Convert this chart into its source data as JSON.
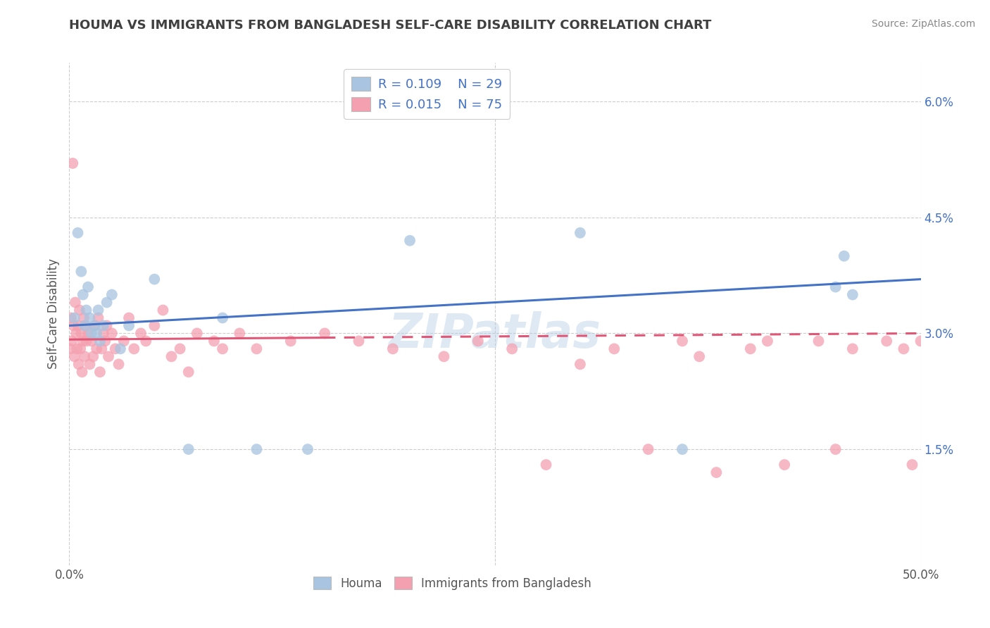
{
  "title": "HOUMA VS IMMIGRANTS FROM BANGLADESH SELF-CARE DISABILITY CORRELATION CHART",
  "source": "Source: ZipAtlas.com",
  "ylabel": "Self-Care Disability",
  "right_yticks": [
    0.0,
    1.5,
    3.0,
    4.5,
    6.0
  ],
  "right_yticklabels": [
    "",
    "1.5%",
    "3.0%",
    "4.5%",
    "6.0%"
  ],
  "xlim": [
    0.0,
    50.0
  ],
  "ylim": [
    0.0,
    6.5
  ],
  "houma_R": 0.109,
  "houma_N": 29,
  "bangladesh_R": 0.015,
  "bangladesh_N": 75,
  "houma_color": "#a8c4e0",
  "houma_line_color": "#4472c4",
  "bangladesh_color": "#f4a0b0",
  "bangladesh_line_color": "#e05878",
  "watermark": "ZIPatlas",
  "background_color": "#ffffff",
  "grid_color": "#cccccc",
  "title_color": "#404040",
  "houma_x": [
    0.3,
    0.5,
    0.7,
    0.8,
    0.9,
    1.0,
    1.1,
    1.2,
    1.3,
    1.5,
    1.6,
    1.7,
    1.8,
    2.0,
    2.2,
    2.5,
    3.0,
    3.5,
    5.0,
    7.0,
    9.0,
    11.0,
    14.0,
    20.0,
    30.0,
    36.0,
    45.0,
    45.5,
    46.0
  ],
  "houma_y": [
    3.2,
    4.3,
    3.8,
    3.5,
    3.1,
    3.3,
    3.6,
    3.2,
    3.0,
    3.1,
    3.0,
    3.3,
    2.9,
    3.1,
    3.4,
    3.5,
    2.8,
    3.1,
    3.7,
    1.5,
    3.2,
    1.5,
    1.5,
    4.2,
    4.3,
    1.5,
    3.6,
    4.0,
    3.5
  ],
  "bangladesh_x": [
    0.05,
    0.1,
    0.15,
    0.2,
    0.25,
    0.3,
    0.35,
    0.4,
    0.45,
    0.5,
    0.55,
    0.6,
    0.65,
    0.7,
    0.75,
    0.8,
    0.85,
    0.9,
    0.95,
    1.0,
    1.1,
    1.2,
    1.3,
    1.4,
    1.5,
    1.6,
    1.7,
    1.8,
    1.9,
    2.0,
    2.1,
    2.2,
    2.3,
    2.5,
    2.7,
    2.9,
    3.2,
    3.5,
    3.8,
    4.2,
    4.5,
    5.0,
    5.5,
    6.0,
    6.5,
    7.0,
    7.5,
    8.5,
    9.0,
    10.0,
    11.0,
    13.0,
    15.0,
    17.0,
    19.0,
    22.0,
    24.0,
    26.0,
    28.0,
    30.0,
    32.0,
    34.0,
    36.0,
    37.0,
    38.0,
    40.0,
    41.0,
    42.0,
    44.0,
    45.0,
    46.0,
    48.0,
    49.0,
    49.5,
    50.0
  ],
  "bangladesh_y": [
    2.8,
    3.2,
    2.9,
    5.2,
    3.1,
    2.7,
    3.4,
    3.0,
    2.8,
    3.1,
    2.6,
    3.3,
    2.8,
    3.0,
    2.5,
    2.9,
    3.2,
    2.7,
    3.1,
    2.9,
    3.0,
    2.6,
    2.9,
    2.7,
    3.1,
    2.8,
    3.2,
    2.5,
    2.8,
    3.0,
    2.9,
    3.1,
    2.7,
    3.0,
    2.8,
    2.6,
    2.9,
    3.2,
    2.8,
    3.0,
    2.9,
    3.1,
    3.3,
    2.7,
    2.8,
    2.5,
    3.0,
    2.9,
    2.8,
    3.0,
    2.8,
    2.9,
    3.0,
    2.9,
    2.8,
    2.7,
    2.9,
    2.8,
    1.3,
    2.6,
    2.8,
    1.5,
    2.9,
    2.7,
    1.2,
    2.8,
    2.9,
    1.3,
    2.9,
    1.5,
    2.8,
    2.9,
    2.8,
    1.3,
    2.9
  ],
  "bd_solid_end_x": 15.0,
  "houma_trend_x0": 0.0,
  "houma_trend_y0": 3.1,
  "houma_trend_x1": 50.0,
  "houma_trend_y1": 3.7,
  "bd_trend_x0": 0.0,
  "bd_trend_y0": 2.92,
  "bd_trend_x1": 50.0,
  "bd_trend_y1": 3.0
}
